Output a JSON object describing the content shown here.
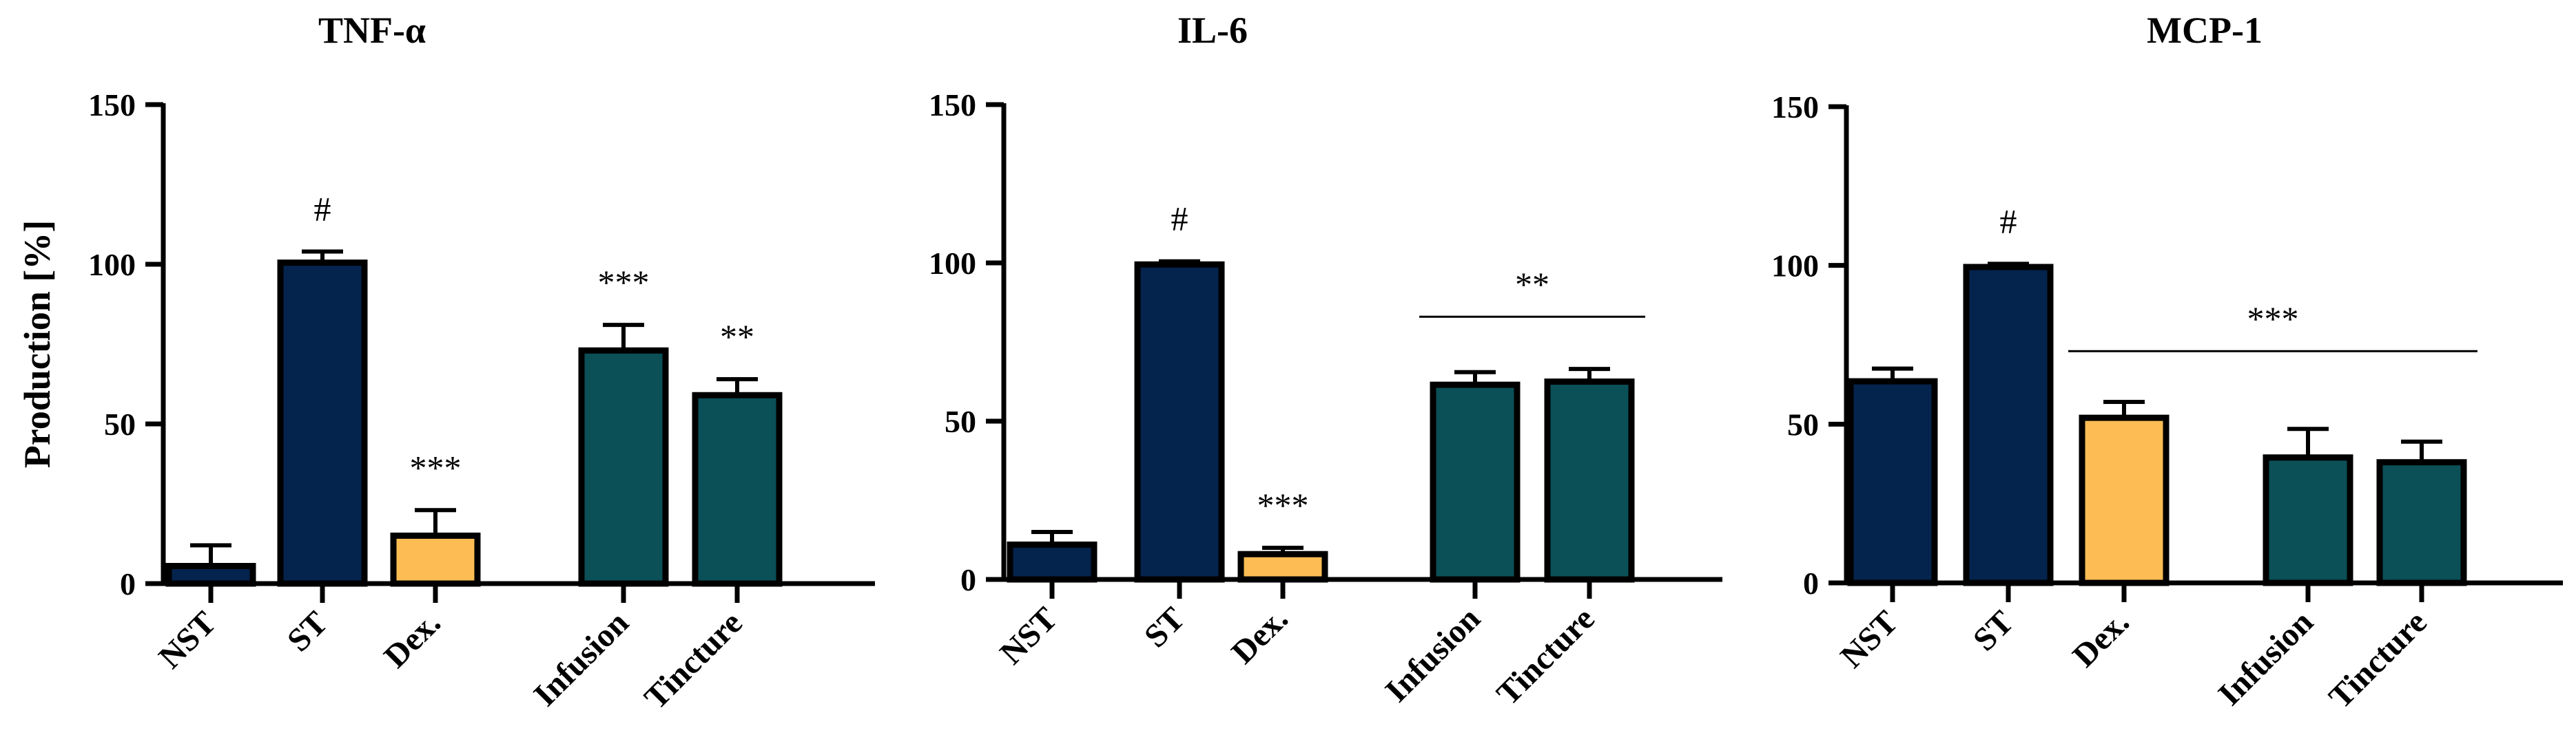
{
  "chart_data": [
    {
      "type": "bar",
      "title": "TNF-α",
      "ylabel": "Production [%]",
      "ylim": [
        0,
        150
      ],
      "yticks": [
        0,
        50,
        100,
        150
      ],
      "categories": [
        "NST",
        "ST",
        "Dex.",
        "Infusion",
        "Tincture"
      ],
      "values": [
        5.5,
        100.5,
        15,
        73,
        59
      ],
      "errors": [
        6.5,
        3.5,
        8,
        8,
        5
      ],
      "colors": [
        "#04234d",
        "#04234d",
        "#fdbd54",
        "#0b4f57",
        "#0b4f57"
      ],
      "annotations": [
        "",
        "#",
        "***",
        "***",
        "**"
      ],
      "group_annotation": null
    },
    {
      "type": "bar",
      "title": "IL-6",
      "ylabel": "",
      "ylim": [
        0,
        150
      ],
      "yticks": [
        0,
        50,
        100,
        150
      ],
      "categories": [
        "NST",
        "ST",
        "Dex.",
        "Infusion",
        "Tincture"
      ],
      "values": [
        11,
        99.5,
        8,
        61.5,
        62.5
      ],
      "errors": [
        4,
        1,
        2,
        4,
        4
      ],
      "colors": [
        "#04234d",
        "#04234d",
        "#fdbd54",
        "#0b4f57",
        "#0b4f57"
      ],
      "annotations": [
        "",
        "#",
        "***",
        "",
        ""
      ],
      "group_annotation": {
        "label": "**",
        "from": 3,
        "to": 4,
        "y": 83
      }
    },
    {
      "type": "bar",
      "title": "MCP-1",
      "ylabel": "",
      "ylim": [
        0,
        150
      ],
      "yticks": [
        0,
        50,
        100,
        150
      ],
      "categories": [
        "NST",
        "ST",
        "Dex.",
        "Infusion",
        "Tincture"
      ],
      "values": [
        63.5,
        99.5,
        52,
        39.5,
        38
      ],
      "errors": [
        4,
        1,
        5,
        9,
        6.5
      ],
      "colors": [
        "#04234d",
        "#04234d",
        "#fdbd54",
        "#0b4f57",
        "#0b4f57"
      ],
      "annotations": [
        "",
        "#",
        "",
        "",
        ""
      ],
      "group_annotation": {
        "label": "***",
        "from": 2,
        "to": 4,
        "y": 73
      }
    }
  ]
}
